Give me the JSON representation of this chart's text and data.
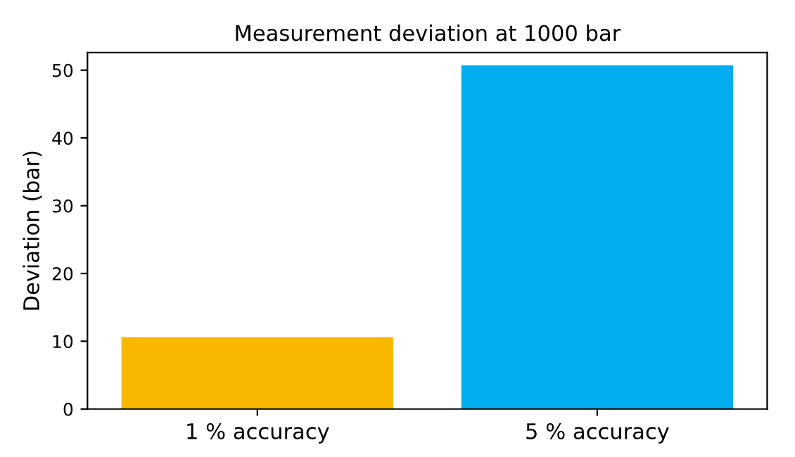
{
  "chart_data": {
    "type": "bar",
    "title": "Measurement deviation at 1000 bar",
    "ylabel": "Deviation (bar)",
    "categories": [
      "1 % accuracy",
      "5 % accuracy"
    ],
    "values": [
      10.6,
      50.7
    ],
    "colors": [
      "#f9b800",
      "#00aeef"
    ],
    "ylim": [
      0,
      52.6
    ],
    "yticks": [
      0,
      10,
      20,
      30,
      40,
      50
    ],
    "grid": false,
    "legend": false
  }
}
